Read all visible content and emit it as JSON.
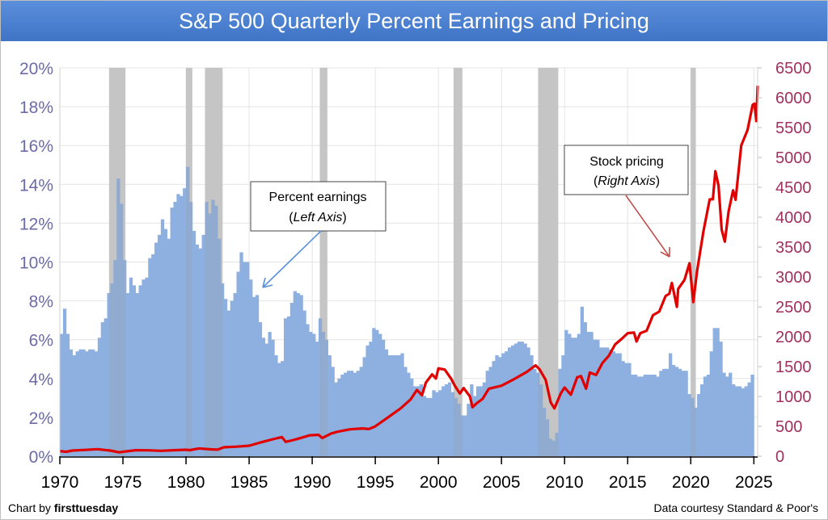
{
  "chart_data": {
    "type": "bar+line",
    "title": "S&P 500 Quarterly Percent Earnings and Pricing",
    "xlim": [
      1970,
      2025.3
    ],
    "x_ticks": [
      "1970",
      "1975",
      "1980",
      "1985",
      "1990",
      "1995",
      "2000",
      "2005",
      "2010",
      "2015",
      "2020",
      "2025"
    ],
    "left_axis": {
      "ylim": [
        0,
        20
      ],
      "ticks": [
        "0%",
        "2%",
        "4%",
        "6%",
        "8%",
        "10%",
        "12%",
        "14%",
        "16%",
        "18%",
        "20%"
      ],
      "color": "#6b6ba8"
    },
    "right_axis": {
      "ylim": [
        0,
        6500
      ],
      "ticks": [
        "0",
        "500",
        "1000",
        "1500",
        "2000",
        "2500",
        "3000",
        "3500",
        "4000",
        "4500",
        "5000",
        "5500",
        "6000",
        "6500"
      ],
      "color": "#a0305e"
    },
    "grid": true,
    "recessions": [
      [
        1973.9,
        1975.2
      ],
      [
        1980.0,
        1980.5
      ],
      [
        1981.5,
        1982.9
      ],
      [
        1990.6,
        1991.2
      ],
      [
        2001.2,
        2001.9
      ],
      [
        2007.9,
        2009.5
      ],
      [
        2020.0,
        2020.4
      ]
    ],
    "earnings": {
      "axis": "left",
      "start": 1970,
      "step": 0.25,
      "color": "#8db0e0",
      "values": [
        6.3,
        7.6,
        6.3,
        5.5,
        5.2,
        5.4,
        5.5,
        5.5,
        5.4,
        5.5,
        5.5,
        5.4,
        6.1,
        6.9,
        7.1,
        8.4,
        8.9,
        10.1,
        14.3,
        13.0,
        10.1,
        8.4,
        9.2,
        8.8,
        8.4,
        8.8,
        9.1,
        9.2,
        10.2,
        10.4,
        11.0,
        11.4,
        12.2,
        11.7,
        11.2,
        12.8,
        13.1,
        13.5,
        13.4,
        13.8,
        14.9,
        13.1,
        11.6,
        10.9,
        10.7,
        11.4,
        13.1,
        12.5,
        13.2,
        12.9,
        11.2,
        8.9,
        8.1,
        7.5,
        8.0,
        8.4,
        9.5,
        10.5,
        10.0,
        10.0,
        9.1,
        8.2,
        8.3,
        6.9,
        6.1,
        5.8,
        6.4,
        6.0,
        5.2,
        4.8,
        4.9,
        7.1,
        7.2,
        7.9,
        8.5,
        8.4,
        8.3,
        7.5,
        6.8,
        6.4,
        6.3,
        5.9,
        7.1,
        6.4,
        6.0,
        5.2,
        4.6,
        3.8,
        4.0,
        4.2,
        4.3,
        4.4,
        4.4,
        4.3,
        4.4,
        4.6,
        5.1,
        5.7,
        5.9,
        6.6,
        6.5,
        6.3,
        6.0,
        5.5,
        5.2,
        5.2,
        5.2,
        5.2,
        5.3,
        4.6,
        4.3,
        4.0,
        3.6,
        3.6,
        3.7,
        3.1,
        3.0,
        3.0,
        3.4,
        3.3,
        3.4,
        3.6,
        3.7,
        3.8,
        3.3,
        3.0,
        2.7,
        2.1,
        2.1,
        2.7,
        3.7,
        3.1,
        3.6,
        3.6,
        3.8,
        4.4,
        4.6,
        4.9,
        5.2,
        5.1,
        5.3,
        5.4,
        5.6,
        5.7,
        5.8,
        5.9,
        5.9,
        5.8,
        5.6,
        5.2,
        4.5,
        4.3,
        3.7,
        2.5,
        1.9,
        0.9,
        0.8,
        1.2,
        4.5,
        5.2,
        6.5,
        6.3,
        6.1,
        6.1,
        6.3,
        7.7,
        6.9,
        6.4,
        6.4,
        6.0,
        6.0,
        5.6,
        5.6,
        5.6,
        5.5,
        5.4,
        5.3,
        5.3,
        4.9,
        4.8,
        4.8,
        4.2,
        4.2,
        4.1,
        4.1,
        4.2,
        4.2,
        4.2,
        4.2,
        4.1,
        4.4,
        4.5,
        4.5,
        5.3,
        4.7,
        4.6,
        4.5,
        4.4,
        4.4,
        3.2,
        3.0,
        2.5,
        3.2,
        3.7,
        4.1,
        4.2,
        5.4,
        6.6,
        6.6,
        5.9,
        4.3,
        4.1,
        4.3,
        3.7,
        3.6,
        3.6,
        3.5,
        3.6,
        3.8,
        4.2
      ]
    },
    "price": {
      "axis": "right",
      "color": "#e00000",
      "points": [
        [
          1970,
          85
        ],
        [
          1970.5,
          75
        ],
        [
          1971,
          95
        ],
        [
          1972,
          105
        ],
        [
          1973,
          118
        ],
        [
          1973.5,
          105
        ],
        [
          1974,
          95
        ],
        [
          1974.7,
          65
        ],
        [
          1975,
          75
        ],
        [
          1976,
          100
        ],
        [
          1977,
          98
        ],
        [
          1978,
          90
        ],
        [
          1979,
          100
        ],
        [
          1980,
          108
        ],
        [
          1980.3,
          102
        ],
        [
          1981,
          130
        ],
        [
          1982,
          115
        ],
        [
          1982.5,
          110
        ],
        [
          1983,
          150
        ],
        [
          1984,
          160
        ],
        [
          1985,
          175
        ],
        [
          1986,
          235
        ],
        [
          1987,
          290
        ],
        [
          1987.6,
          320
        ],
        [
          1987.9,
          240
        ],
        [
          1988.5,
          270
        ],
        [
          1989,
          300
        ],
        [
          1989.8,
          350
        ],
        [
          1990.5,
          358
        ],
        [
          1990.8,
          305
        ],
        [
          1991.5,
          380
        ],
        [
          1992,
          410
        ],
        [
          1993,
          450
        ],
        [
          1994,
          465
        ],
        [
          1994.5,
          455
        ],
        [
          1995,
          500
        ],
        [
          1996,
          650
        ],
        [
          1997,
          800
        ],
        [
          1997.8,
          950
        ],
        [
          1998.3,
          1110
        ],
        [
          1998.7,
          1020
        ],
        [
          1999,
          1230
        ],
        [
          1999.5,
          1370
        ],
        [
          1999.8,
          1300
        ],
        [
          2000,
          1470
        ],
        [
          2000.5,
          1450
        ],
        [
          2001,
          1300
        ],
        [
          2001.3,
          1180
        ],
        [
          2001.7,
          1050
        ],
        [
          2002,
          1140
        ],
        [
          2002.5,
          1000
        ],
        [
          2002.7,
          820
        ],
        [
          2003,
          880
        ],
        [
          2003.5,
          960
        ],
        [
          2004,
          1130
        ],
        [
          2005,
          1180
        ],
        [
          2006,
          1290
        ],
        [
          2007,
          1410
        ],
        [
          2007.7,
          1520
        ],
        [
          2008,
          1460
        ],
        [
          2008.5,
          1280
        ],
        [
          2008.9,
          900
        ],
        [
          2009.2,
          800
        ],
        [
          2009.7,
          1050
        ],
        [
          2010,
          1150
        ],
        [
          2010.5,
          1030
        ],
        [
          2011,
          1320
        ],
        [
          2011.3,
          1340
        ],
        [
          2011.7,
          1130
        ],
        [
          2012,
          1400
        ],
        [
          2012.5,
          1360
        ],
        [
          2013,
          1560
        ],
        [
          2013.5,
          1680
        ],
        [
          2014,
          1870
        ],
        [
          2014.5,
          1960
        ],
        [
          2015,
          2060
        ],
        [
          2015.5,
          2070
        ],
        [
          2015.7,
          1920
        ],
        [
          2016,
          2060
        ],
        [
          2016.5,
          2100
        ],
        [
          2017,
          2360
        ],
        [
          2017.5,
          2420
        ],
        [
          2018,
          2680
        ],
        [
          2018.3,
          2720
        ],
        [
          2018.5,
          2900
        ],
        [
          2018.9,
          2500
        ],
        [
          2019,
          2800
        ],
        [
          2019.5,
          2950
        ],
        [
          2019.9,
          3230
        ],
        [
          2020.2,
          2580
        ],
        [
          2020.5,
          3100
        ],
        [
          2021,
          3760
        ],
        [
          2021.5,
          4300
        ],
        [
          2021.75,
          4300
        ],
        [
          2021.95,
          4770
        ],
        [
          2022.2,
          4530
        ],
        [
          2022.45,
          3790
        ],
        [
          2022.7,
          3590
        ],
        [
          2023,
          4100
        ],
        [
          2023.35,
          4450
        ],
        [
          2023.55,
          4290
        ],
        [
          2024,
          5200
        ],
        [
          2024.5,
          5460
        ],
        [
          2024.9,
          5880
        ],
        [
          2025.05,
          5900
        ],
        [
          2025.2,
          5610
        ],
        [
          2025.3,
          6200
        ]
      ]
    },
    "annotations": [
      {
        "line1": "Percent earnings",
        "line2": "Left Axis"
      },
      {
        "line1": "Stock pricing",
        "line2": "Right Axis"
      }
    ]
  },
  "footer": {
    "credit_prefix": "Chart by ",
    "credit_brand": "firsttuesday",
    "source": "Data courtesy Standard & Poor's"
  }
}
